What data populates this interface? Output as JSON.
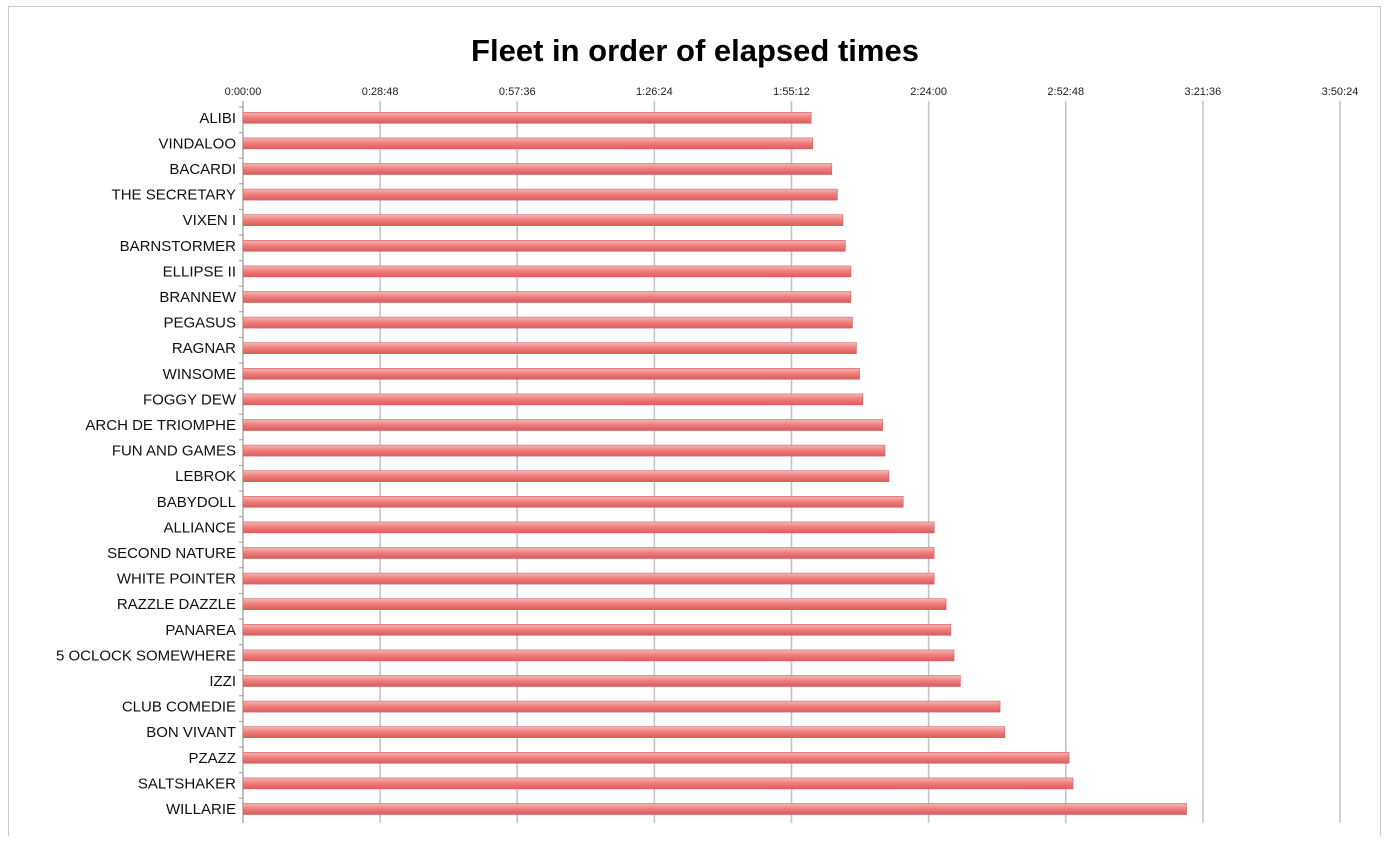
{
  "chart_data": {
    "type": "bar",
    "orientation": "horizontal",
    "title": "Fleet in order of elapsed times",
    "xlabel": "",
    "ylabel": "",
    "x_ticks": [
      "0:00:00",
      "0:28:48",
      "0:57:36",
      "1:26:24",
      "1:55:12",
      "2:24:00",
      "2:52:48",
      "3:21:36",
      "3:50:24"
    ],
    "xlim_seconds": [
      0,
      13824
    ],
    "grid": "vertical",
    "legend": "none",
    "bar_color": "#ef8585",
    "categories": [
      "ALIBI",
      "VINDALOO",
      "BACARDI",
      "THE SECRETARY",
      "VIXEN I",
      "BARNSTORMER",
      "ELLIPSE II",
      "BRANNEW",
      "PEGASUS",
      "RAGNAR",
      "WINSOME",
      "FOGGY DEW",
      "ARCH DE TRIOMPHE",
      "FUN AND GAMES",
      "LEBROK",
      "BABYDOLL",
      "ALLIANCE",
      "SECOND NATURE",
      "WHITE POINTER",
      "RAZZLE DAZZLE",
      "PANAREA",
      "5 OCLOCK SOMEWHERE",
      "IZZI",
      "CLUB COMEDIE",
      "BON VIVANT",
      "PZAZZ",
      "SALTSHAKER",
      "WILLARIE"
    ],
    "values_seconds": [
      7160,
      7180,
      7420,
      7490,
      7560,
      7590,
      7660,
      7660,
      7680,
      7730,
      7770,
      7810,
      8060,
      8090,
      8140,
      8320,
      8710,
      8710,
      8710,
      8860,
      8920,
      8960,
      9040,
      9540,
      9600,
      10410,
      10460,
      11890
    ]
  }
}
